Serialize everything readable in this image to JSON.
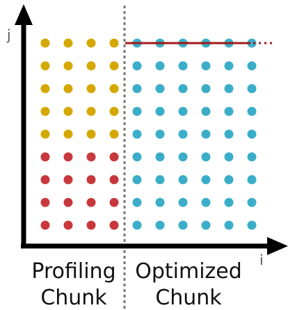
{
  "axes": {
    "x_label": "i",
    "y_label": "j"
  },
  "chunks": {
    "profiling": {
      "line1": "Profiling",
      "line2": "Chunk"
    },
    "optimized": {
      "line1": "Optimized",
      "line2": "Chunk"
    }
  },
  "grid": {
    "columns": 10,
    "rows": 9,
    "profiling_columns": 4,
    "yellow_rows_from_top": 5
  },
  "colors": {
    "axis": "#000000",
    "divider": "#777777",
    "yellow": "#d4a800",
    "red": "#c8373c",
    "blue": "#3aaec8",
    "highlight_line": "#a01818"
  }
}
